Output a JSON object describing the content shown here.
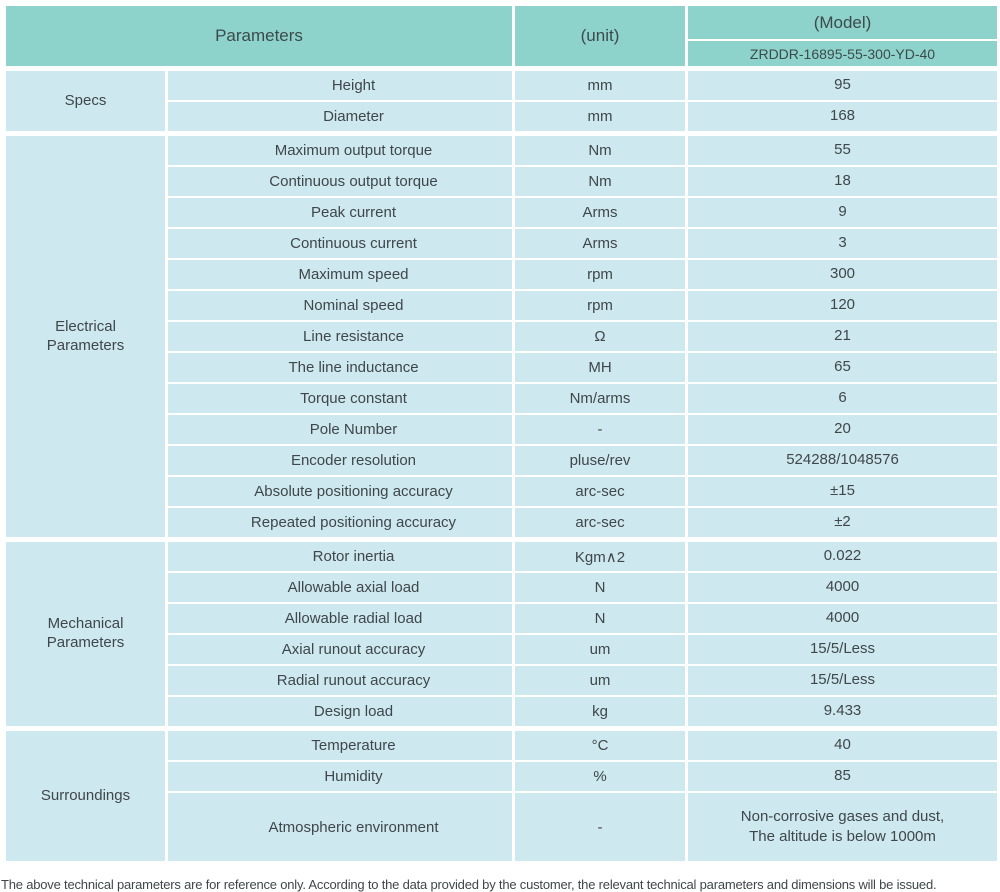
{
  "header": {
    "parameters_label": "Parameters",
    "unit_label": "(unit)",
    "model_label": "(Model)",
    "model_value": "ZRDDR-16895-55-300-YD-40"
  },
  "sections": [
    {
      "group": "Specs",
      "rows": [
        {
          "name": "Height",
          "unit": "mm",
          "value": "95"
        },
        {
          "name": "Diameter",
          "unit": "mm",
          "value": "168"
        }
      ]
    },
    {
      "group": "Electrical\nParameters",
      "rows": [
        {
          "name": "Maximum output torque",
          "unit": "Nm",
          "value": "55"
        },
        {
          "name": "Continuous output torque",
          "unit": "Nm",
          "value": "18"
        },
        {
          "name": "Peak current",
          "unit": "Arms",
          "value": "9"
        },
        {
          "name": "Continuous current",
          "unit": "Arms",
          "value": "3"
        },
        {
          "name": "Maximum speed",
          "unit": "rpm",
          "value": "300"
        },
        {
          "name": "Nominal speed",
          "unit": "rpm",
          "value": "120"
        },
        {
          "name": "Line resistance",
          "unit": "Ω",
          "value": "21"
        },
        {
          "name": "The line inductance",
          "unit": "MH",
          "value": "65"
        },
        {
          "name": "Torque constant",
          "unit": "Nm/arms",
          "value": "6"
        },
        {
          "name": "Pole Number",
          "unit": "-",
          "value": "20"
        },
        {
          "name": "Encoder resolution",
          "unit": "pluse/rev",
          "value": "524288/1048576"
        },
        {
          "name": "Absolute positioning accuracy",
          "unit": "arc-sec",
          "value": "±15"
        },
        {
          "name": "Repeated positioning accuracy",
          "unit": "arc-sec",
          "value": "±2"
        }
      ]
    },
    {
      "group": "Mechanical\nParameters",
      "rows": [
        {
          "name": "Rotor inertia",
          "unit": "Kgm∧2",
          "value": "0.022"
        },
        {
          "name": "Allowable axial load",
          "unit": "N",
          "value": "4000"
        },
        {
          "name": "Allowable radial load",
          "unit": "N",
          "value": "4000"
        },
        {
          "name": "Axial runout accuracy",
          "unit": "um",
          "value": "15/5/Less"
        },
        {
          "name": "Radial runout accuracy",
          "unit": "um",
          "value": "15/5/Less"
        },
        {
          "name": "Design load",
          "unit": "kg",
          "value": "9.433"
        }
      ]
    },
    {
      "group": "Surroundings",
      "rows": [
        {
          "name": "Temperature",
          "unit": "°C",
          "value": "40"
        },
        {
          "name": "Humidity",
          "unit": "%",
          "value": "85"
        },
        {
          "name": "Atmospheric environment",
          "unit": "-",
          "value": "Non-corrosive gases and dust,\nThe altitude is below 1000m",
          "tall": true
        }
      ]
    }
  ],
  "footer": {
    "note": "The above technical parameters are for reference only. According to the data provided by the customer, the relevant technical parameters and dimensions will be issued."
  },
  "colors": {
    "header_bg": "#8ed3cb",
    "cell_bg": "#cde8ee",
    "border": "#ffffff",
    "text": "#3f474a"
  }
}
